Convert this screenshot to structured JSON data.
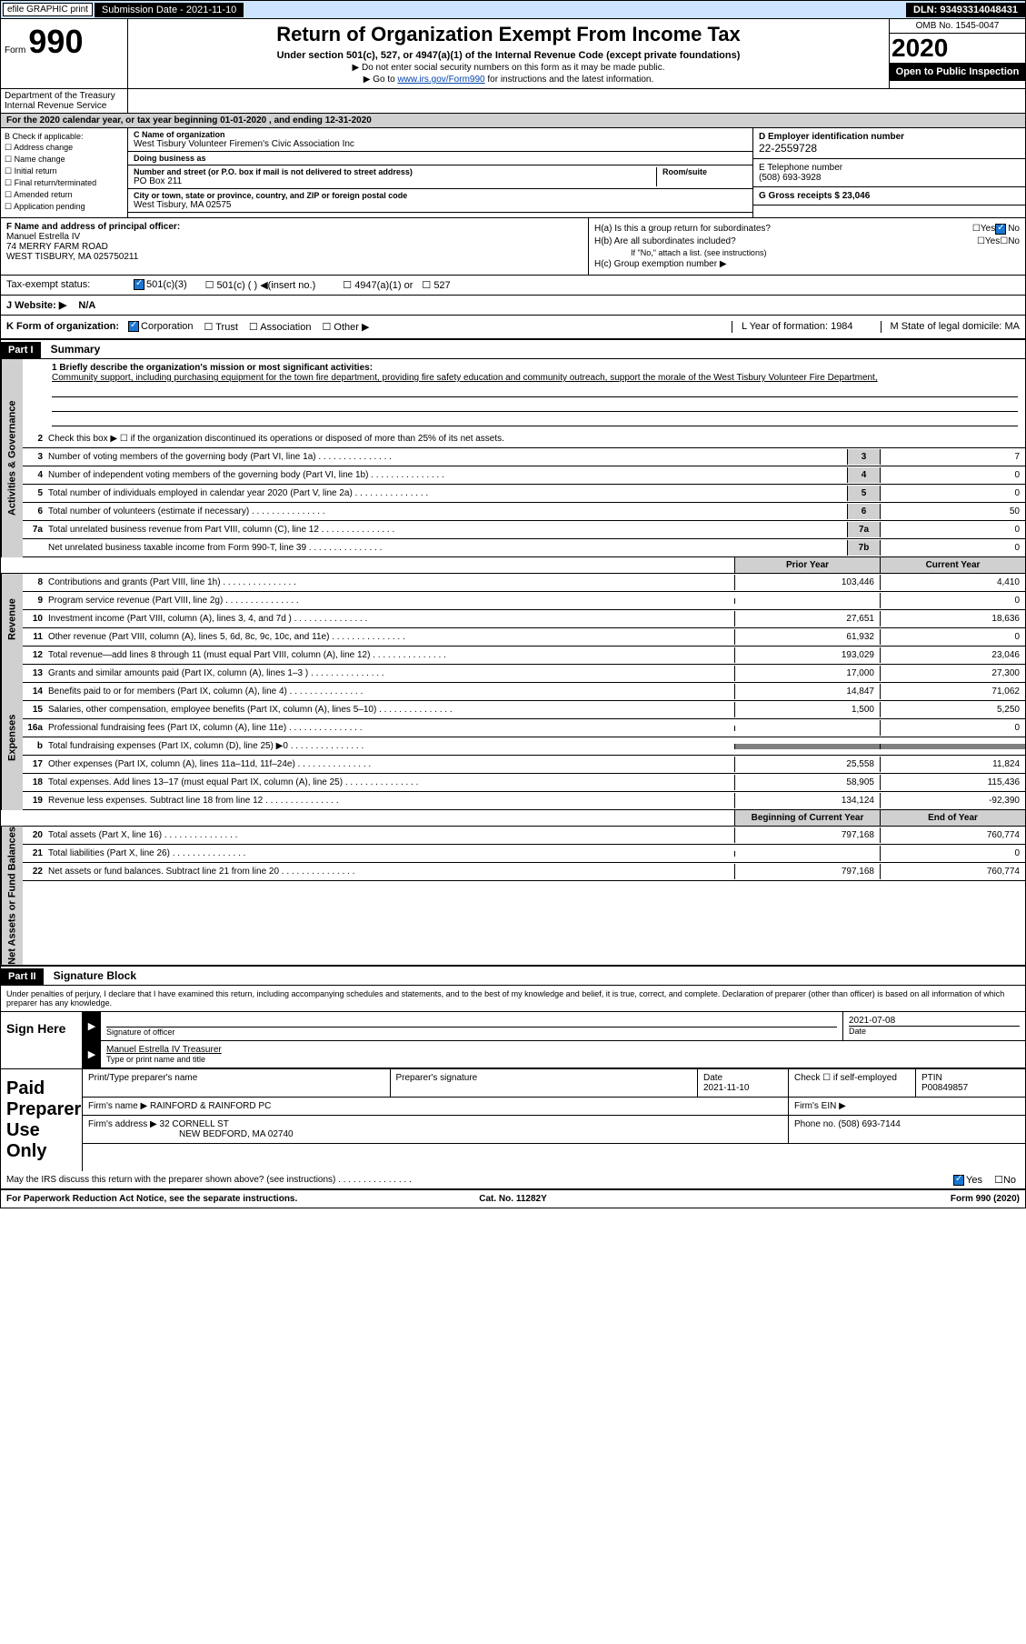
{
  "topbar": {
    "efile": "efile GRAPHIC print",
    "sub_date_lbl": "Submission Date - 2021-11-10",
    "dln": "DLN: 93493314048431"
  },
  "header": {
    "form_prefix": "Form",
    "form_num": "990",
    "title": "Return of Organization Exempt From Income Tax",
    "sub1": "Under section 501(c), 527, or 4947(a)(1) of the Internal Revenue Code (except private foundations)",
    "sub2": "▶ Do not enter social security numbers on this form as it may be made public.",
    "sub3_pre": "▶ Go to ",
    "sub3_link": "www.irs.gov/Form990",
    "sub3_post": " for instructions and the latest information.",
    "omb": "OMB No. 1545-0047",
    "year": "2020",
    "open": "Open to Public Inspection",
    "dept": "Department of the Treasury Internal Revenue Service"
  },
  "period": "For the 2020 calendar year, or tax year beginning 01-01-2020   , and ending 12-31-2020",
  "checkB": {
    "hdr": "B Check if applicable:",
    "opts": [
      "Address change",
      "Name change",
      "Initial return",
      "Final return/terminated",
      "Amended return",
      "Application pending"
    ]
  },
  "org": {
    "name_lbl": "C Name of organization",
    "name": "West Tisbury Volunteer Firemen's Civic Association Inc",
    "dba_lbl": "Doing business as",
    "addr_lbl": "Number and street (or P.O. box if mail is not delivered to street address)",
    "room_lbl": "Room/suite",
    "addr": "PO Box 211",
    "city_lbl": "City or town, state or province, country, and ZIP or foreign postal code",
    "city": "West Tisbury, MA  02575"
  },
  "ein": {
    "lbl": "D Employer identification number",
    "val": "22-2559728"
  },
  "phone": {
    "lbl": "E Telephone number",
    "val": "(508) 693-3928"
  },
  "gross": {
    "lbl": "G Gross receipts $ 23,046"
  },
  "officer": {
    "lbl": "F  Name and address of principal officer:",
    "name": "Manuel Estrella IV",
    "addr1": "74 MERRY FARM ROAD",
    "addr2": "WEST TISBURY, MA  025750211"
  },
  "secH": {
    "ha": "H(a)  Is this a group return for subordinates?",
    "hb": "H(b)  Are all subordinates included?",
    "hb_note": "If \"No,\" attach a list. (see instructions)",
    "hc": "H(c)  Group exemption number ▶",
    "yes": "Yes",
    "no": "No"
  },
  "taxExempt": {
    "lbl": "Tax-exempt status:",
    "c3": "501(c)(3)",
    "c": "501(c) (  ) ◀(insert no.)",
    "a1": "4947(a)(1) or",
    "s527": "527"
  },
  "website": {
    "lbl": "J  Website: ▶",
    "val": "N/A"
  },
  "rowK": {
    "lbl": "K Form of organization:",
    "corp": "Corporation",
    "trust": "Trust",
    "assoc": "Association",
    "other": "Other ▶",
    "year_lbl": "L Year of formation: 1984",
    "state_lbl": "M State of legal domicile: MA"
  },
  "part1": {
    "hdr": "Part I",
    "title": "Summary"
  },
  "mission": {
    "lbl": "1  Briefly describe the organization's mission or most significant activities:",
    "txt": "Community support, including purchasing equipment for the town fire department, providing fire safety education and community outreach, support the morale of the West Tisbury Volunteer Fire Department,"
  },
  "vtabs": {
    "gov": "Activities & Governance",
    "rev": "Revenue",
    "exp": "Expenses",
    "net": "Net Assets or Fund Balances"
  },
  "lines": {
    "l2": {
      "n": "2",
      "t": "Check this box ▶ ☐  if the organization discontinued its operations or disposed of more than 25% of its net assets."
    },
    "l3": {
      "n": "3",
      "t": "Number of voting members of the governing body (Part VI, line 1a)",
      "box": "3",
      "v": "7"
    },
    "l4": {
      "n": "4",
      "t": "Number of independent voting members of the governing body (Part VI, line 1b)",
      "box": "4",
      "v": "0"
    },
    "l5": {
      "n": "5",
      "t": "Total number of individuals employed in calendar year 2020 (Part V, line 2a)",
      "box": "5",
      "v": "0"
    },
    "l6": {
      "n": "6",
      "t": "Total number of volunteers (estimate if necessary)",
      "box": "6",
      "v": "50"
    },
    "l7a": {
      "n": "7a",
      "t": "Total unrelated business revenue from Part VIII, column (C), line 12",
      "box": "7a",
      "v": "0"
    },
    "l7b": {
      "n": "",
      "t": "Net unrelated business taxable income from Form 990-T, line 39",
      "box": "7b",
      "v": "0"
    }
  },
  "hdrs": {
    "prior": "Prior Year",
    "current": "Current Year",
    "begin": "Beginning of Current Year",
    "end": "End of Year"
  },
  "rev": [
    {
      "n": "8",
      "t": "Contributions and grants (Part VIII, line 1h)",
      "p": "103,446",
      "c": "4,410"
    },
    {
      "n": "9",
      "t": "Program service revenue (Part VIII, line 2g)",
      "p": "",
      "c": "0"
    },
    {
      "n": "10",
      "t": "Investment income (Part VIII, column (A), lines 3, 4, and 7d )",
      "p": "27,651",
      "c": "18,636"
    },
    {
      "n": "11",
      "t": "Other revenue (Part VIII, column (A), lines 5, 6d, 8c, 9c, 10c, and 11e)",
      "p": "61,932",
      "c": "0"
    },
    {
      "n": "12",
      "t": "Total revenue—add lines 8 through 11 (must equal Part VIII, column (A), line 12)",
      "p": "193,029",
      "c": "23,046"
    }
  ],
  "exp": [
    {
      "n": "13",
      "t": "Grants and similar amounts paid (Part IX, column (A), lines 1–3 )",
      "p": "17,000",
      "c": "27,300"
    },
    {
      "n": "14",
      "t": "Benefits paid to or for members (Part IX, column (A), line 4)",
      "p": "14,847",
      "c": "71,062"
    },
    {
      "n": "15",
      "t": "Salaries, other compensation, employee benefits (Part IX, column (A), lines 5–10)",
      "p": "1,500",
      "c": "5,250"
    },
    {
      "n": "16a",
      "t": "Professional fundraising fees (Part IX, column (A), line 11e)",
      "p": "",
      "c": "0"
    },
    {
      "n": "b",
      "t": "Total fundraising expenses (Part IX, column (D), line 25) ▶0",
      "p": "gray",
      "c": "gray"
    },
    {
      "n": "17",
      "t": "Other expenses (Part IX, column (A), lines 11a–11d, 11f–24e)",
      "p": "25,558",
      "c": "11,824"
    },
    {
      "n": "18",
      "t": "Total expenses. Add lines 13–17 (must equal Part IX, column (A), line 25)",
      "p": "58,905",
      "c": "115,436"
    },
    {
      "n": "19",
      "t": "Revenue less expenses. Subtract line 18 from line 12",
      "p": "134,124",
      "c": "-92,390"
    }
  ],
  "net": [
    {
      "n": "20",
      "t": "Total assets (Part X, line 16)",
      "p": "797,168",
      "c": "760,774"
    },
    {
      "n": "21",
      "t": "Total liabilities (Part X, line 26)",
      "p": "",
      "c": "0"
    },
    {
      "n": "22",
      "t": "Net assets or fund balances. Subtract line 21 from line 20",
      "p": "797,168",
      "c": "760,774"
    }
  ],
  "part2": {
    "hdr": "Part II",
    "title": "Signature Block"
  },
  "sig": {
    "decl": "Under penalties of perjury, I declare that I have examined this return, including accompanying schedules and statements, and to the best of my knowledge and belief, it is true, correct, and complete. Declaration of preparer (other than officer) is based on all information of which preparer has any knowledge.",
    "sign_here": "Sign Here",
    "sig_officer": "Signature of officer",
    "date": "Date",
    "date_val": "2021-07-08",
    "name_title": "Manuel Estrella IV Treasurer",
    "type_name": "Type or print name and title",
    "paid": "Paid Preparer Use Only",
    "prep_name": "Print/Type preparer's name",
    "prep_sig": "Preparer's signature",
    "prep_date": "Date",
    "prep_date_val": "2021-11-10",
    "check_self": "Check ☐  if self-employed",
    "ptin": "PTIN",
    "ptin_val": "P00849857",
    "firm_name_lbl": "Firm's name    ▶",
    "firm_name": "RAINFORD & RAINFORD PC",
    "firm_ein": "Firm's EIN ▶",
    "firm_addr_lbl": "Firm's address ▶",
    "firm_addr1": "32 CORNELL ST",
    "firm_addr2": "NEW BEDFORD, MA  02740",
    "phone_lbl": "Phone no. (508) 693-7144",
    "discuss": "May the IRS discuss this return with the preparer shown above? (see instructions)"
  },
  "footer": {
    "left": "For Paperwork Reduction Act Notice, see the separate instructions.",
    "mid": "Cat. No. 11282Y",
    "right": "Form 990 (2020)"
  }
}
